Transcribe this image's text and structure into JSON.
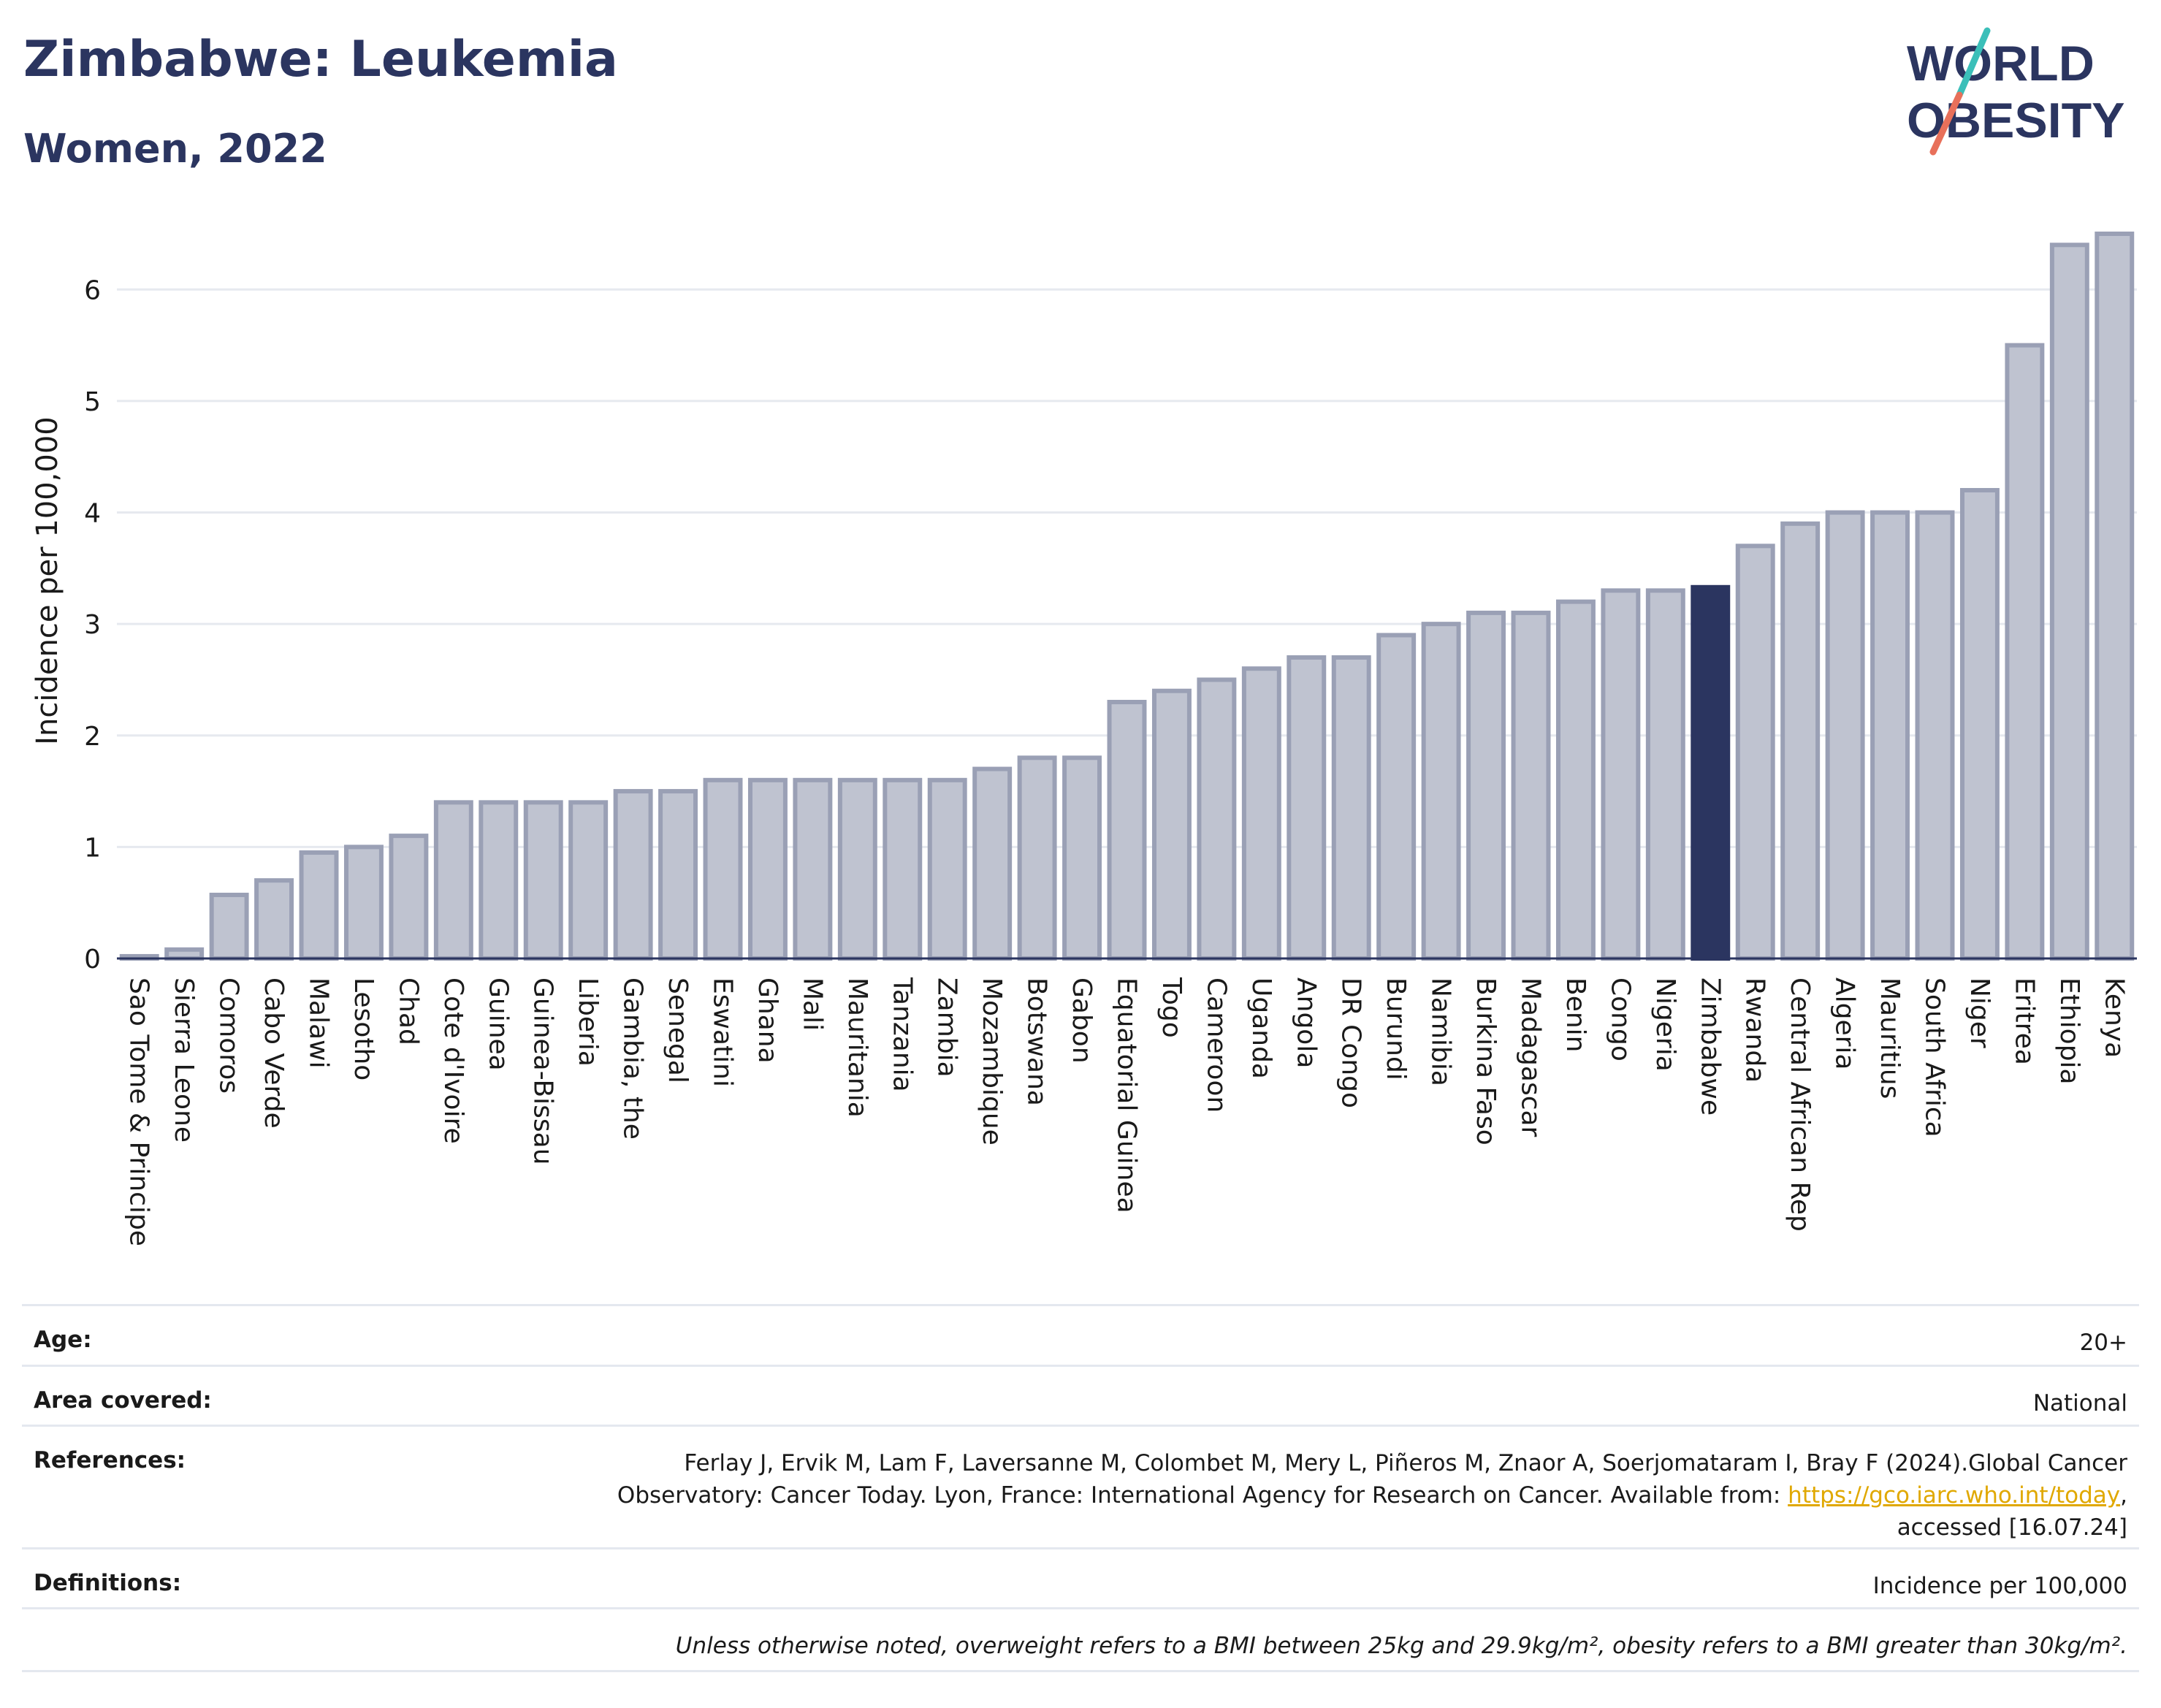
{
  "header": {
    "title": "Zimbabwe: Leukemia",
    "subtitle": "Women, 2022",
    "logo_line1": "WORLD",
    "logo_line2": "OBESITY"
  },
  "colors": {
    "bar_fill": "#bfc3d0",
    "bar_stroke": "#9aa0b5",
    "highlight": "#2b3560",
    "title": "#2b3560",
    "logo_slash_teal": "#3bbfb9",
    "logo_slash_red": "#e8705a",
    "link": "#e0a800"
  },
  "chart_data": {
    "type": "bar",
    "ylabel": "Incidence per 100,000",
    "ylim": [
      0,
      6.5
    ],
    "yticks": [
      0,
      1,
      2,
      3,
      4,
      5,
      6
    ],
    "highlight": "Zimbabwe",
    "grid": true,
    "categories": [
      "Sao Tome & Principe",
      "Sierra Leone",
      "Comoros",
      "Cabo Verde",
      "Malawi",
      "Lesotho",
      "Chad",
      "Cote d'Ivoire",
      "Guinea",
      "Guinea-Bissau",
      "Liberia",
      "Gambia, the",
      "Senegal",
      "Eswatini",
      "Ghana",
      "Mali",
      "Mauritania",
      "Tanzania",
      "Zambia",
      "Mozambique",
      "Botswana",
      "Gabon",
      "Equatorial Guinea",
      "Togo",
      "Cameroon",
      "Uganda",
      "Angola",
      "DR Congo",
      "Burundi",
      "Namibia",
      "Burkina Faso",
      "Madagascar",
      "Benin",
      "Congo",
      "Nigeria",
      "Zimbabwe",
      "Rwanda",
      "Central African Rep",
      "Algeria",
      "Mauritius",
      "South Africa",
      "Niger",
      "Eritrea",
      "Ethiopia",
      "Kenya"
    ],
    "values": [
      0.02,
      0.08,
      0.57,
      0.7,
      0.95,
      1.0,
      1.1,
      1.4,
      1.4,
      1.4,
      1.4,
      1.5,
      1.5,
      1.6,
      1.6,
      1.6,
      1.6,
      1.6,
      1.6,
      1.7,
      1.8,
      1.8,
      2.3,
      2.4,
      2.5,
      2.6,
      2.7,
      2.7,
      2.9,
      3.0,
      3.1,
      3.1,
      3.2,
      3.3,
      3.3,
      3.33,
      3.7,
      3.9,
      4.0,
      4.0,
      4.0,
      4.2,
      5.5,
      6.4,
      6.5
    ]
  },
  "meta": {
    "age_label": "Age:",
    "age_value": "20+",
    "area_label": "Area covered:",
    "area_value": "National",
    "references_label": "References:",
    "references_line1": "Ferlay J, Ervik M, Lam F, Laversanne M, Colombet M, Mery L, Piñeros M, Znaor A, Soerjomataram I, Bray F (2024).Global Cancer",
    "references_line2": "Observatory: Cancer Today. Lyon, France: International Agency for Research on Cancer. Available from: ",
    "references_link": "https://gco.iarc.who.int/today",
    "references_line2_end": ",",
    "references_line3": "accessed [16.07.24]",
    "definitions_label": "Definitions:",
    "definitions_value": "Incidence per 100,000",
    "note": "Unless otherwise noted, overweight refers to a BMI between 25kg and 29.9kg/m², obesity refers to a BMI greater than 30kg/m²."
  }
}
